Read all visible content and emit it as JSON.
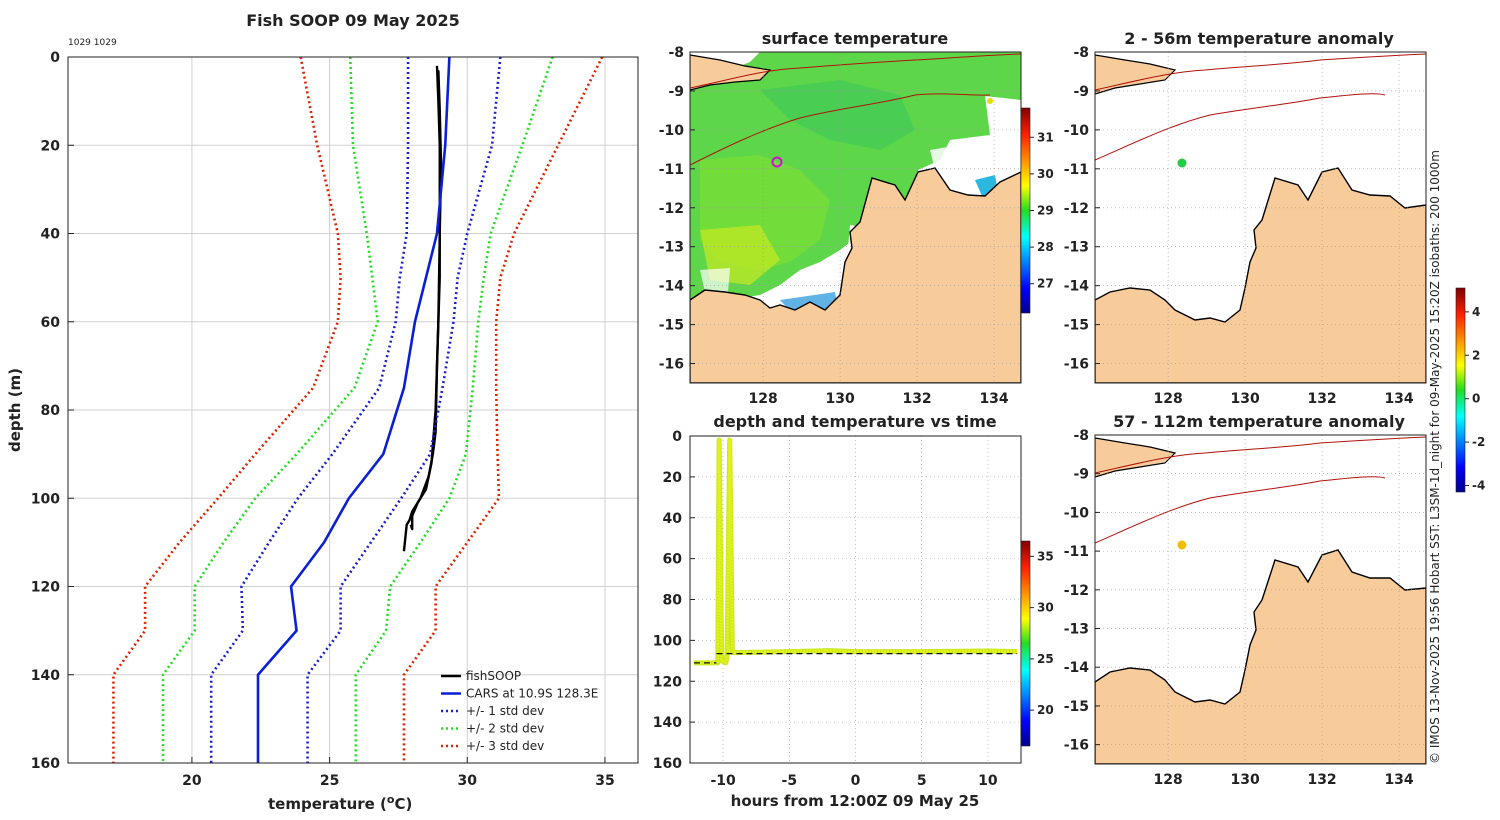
{
  "credit": "© IMOS 13-Nov-2025 19:56 Hobart SST: L3SM-1d_night for 09-May-2025 15:20Z isobaths: 200  1000m",
  "colors": {
    "fish": "#000000",
    "cars": "#0a1fd6",
    "std1": "#1a1fd0",
    "std2": "#22dd22",
    "std3": "#dd2200",
    "land": "#f8cb9a",
    "coast": "#000000",
    "isobath": "#b0120a",
    "grid": "#d0d0d0"
  },
  "chart_data": [
    {
      "id": "profile",
      "type": "line",
      "title": "Fish SOOP 09 May 2025",
      "annotation": "1029 1029",
      "xlabel": "temperature (oC)",
      "ylabel": "depth (m)",
      "xlim": [
        15.5,
        36.2
      ],
      "ylim": [
        0,
        160
      ],
      "xticks": [
        "20",
        "25",
        "30",
        "35"
      ],
      "yticks": [
        "0",
        "20",
        "40",
        "60",
        "80",
        "100",
        "120",
        "140",
        "160"
      ],
      "legend": [
        "fishSOOP",
        "CARS at 10.9S 128.3E",
        "+/- 1 std dev",
        "+/- 2 std dev",
        "+/- 3 std dev"
      ],
      "series": [
        {
          "name": "fishSOOP",
          "color_key": "fish",
          "x": [
            28.9,
            28.95,
            29.0,
            29.0,
            29.0,
            28.9,
            28.85,
            28.75,
            28.6,
            28.3,
            28.0,
            27.9,
            27.8,
            27.75,
            27.7
          ],
          "y": [
            2,
            10,
            20,
            30,
            50,
            70,
            85,
            90,
            95,
            100,
            103,
            105,
            106,
            109,
            112
          ]
        },
        {
          "name": "fishSOOP-2",
          "color_key": "fish",
          "x": [
            28.95,
            29.0,
            29.05,
            29.0,
            28.95,
            28.85,
            28.7,
            28.5,
            28.2,
            28.0,
            28.0,
            27.95
          ],
          "y": [
            3,
            12,
            25,
            40,
            60,
            80,
            92,
            98,
            101,
            104,
            107,
            106
          ]
        },
        {
          "name": "CARS",
          "color_key": "cars",
          "style": "solid",
          "x": [
            29.35,
            29.2,
            28.9,
            28.5,
            28.1,
            27.7,
            26.95,
            25.7,
            24.8,
            23.6,
            23.8,
            22.4,
            22.4
          ],
          "y": [
            0,
            20,
            40,
            50,
            60,
            75,
            90,
            100,
            110,
            120,
            130,
            140,
            160
          ]
        },
        {
          "name": "CARS -1sd",
          "color_key": "std1",
          "style": "dot",
          "x": [
            27.85,
            27.85,
            27.8,
            27.55,
            27.4,
            26.8,
            25.1,
            23.85,
            22.8,
            21.8,
            21.85,
            20.7,
            20.7
          ],
          "y": [
            0,
            20,
            40,
            50,
            60,
            75,
            90,
            100,
            110,
            120,
            130,
            140,
            160
          ]
        },
        {
          "name": "CARS +1sd",
          "color_key": "std1",
          "style": "dot",
          "x": [
            31.2,
            30.9,
            30.0,
            29.65,
            29.5,
            29.1,
            28.65,
            27.6,
            26.5,
            25.4,
            25.4,
            24.2,
            24.2
          ],
          "y": [
            0,
            20,
            40,
            50,
            60,
            75,
            90,
            100,
            110,
            120,
            130,
            140,
            160
          ]
        },
        {
          "name": "CARS -2sd",
          "color_key": "std2",
          "style": "dot",
          "x": [
            25.75,
            25.85,
            26.35,
            26.55,
            26.75,
            25.9,
            23.8,
            22.3,
            21.15,
            20.1,
            20.1,
            18.95,
            18.95
          ],
          "y": [
            0,
            20,
            40,
            50,
            60,
            75,
            90,
            100,
            110,
            120,
            130,
            140,
            160
          ]
        },
        {
          "name": "CARS +2sd",
          "color_key": "std2",
          "style": "dot",
          "x": [
            33.1,
            32.0,
            30.85,
            30.6,
            30.4,
            30.2,
            29.95,
            29.35,
            28.3,
            27.2,
            27.05,
            25.95,
            25.95
          ],
          "y": [
            0,
            20,
            40,
            50,
            60,
            75,
            90,
            100,
            110,
            120,
            130,
            140,
            160
          ]
        },
        {
          "name": "CARS -3sd",
          "color_key": "std3",
          "style": "dot",
          "x": [
            23.95,
            24.55,
            25.3,
            25.4,
            25.3,
            24.4,
            22.3,
            20.95,
            19.55,
            18.3,
            18.3,
            17.15,
            17.15
          ],
          "y": [
            0,
            20,
            40,
            50,
            60,
            75,
            90,
            100,
            110,
            120,
            130,
            140,
            160
          ]
        },
        {
          "name": "CARS +3sd",
          "color_key": "std3",
          "style": "dot",
          "x": [
            34.9,
            33.3,
            31.7,
            31.2,
            31.05,
            31.05,
            31.1,
            31.15,
            30.0,
            28.85,
            28.85,
            27.7,
            27.7
          ],
          "y": [
            0,
            20,
            40,
            50,
            60,
            75,
            90,
            100,
            110,
            120,
            130,
            140,
            160
          ]
        }
      ]
    },
    {
      "id": "sst_map",
      "type": "heatmap",
      "title": "surface temperature",
      "xlim": [
        126.1,
        134.7
      ],
      "ylim": [
        -16.5,
        -8
      ],
      "xticks": [
        "128",
        "130",
        "132",
        "134"
      ],
      "yticks": [
        "-8",
        "-9",
        "-10",
        "-11",
        "-12",
        "-13",
        "-14",
        "-15",
        "-16"
      ],
      "colorbar": {
        "range": [
          26.2,
          31.8
        ],
        "ticks": [
          "27",
          "28",
          "29",
          "30",
          "31"
        ]
      },
      "marker": {
        "lon": 128.3,
        "lat": -10.9,
        "label": "ring"
      }
    },
    {
      "id": "anom_shallow",
      "type": "heatmap",
      "title": "2 - 56m temperature anomaly",
      "xlim": [
        126.1,
        134.7
      ],
      "ylim": [
        -16.5,
        -8
      ],
      "xticks": [
        "128",
        "130",
        "132",
        "134"
      ],
      "yticks": [
        "-8",
        "-9",
        "-10",
        "-11",
        "-12",
        "-13",
        "-14",
        "-15",
        "-16"
      ],
      "point": {
        "lon": 128.3,
        "lat": -10.9,
        "value": 0.3
      }
    },
    {
      "id": "anom_deep",
      "type": "heatmap",
      "title": "57 - 112m temperature anomaly",
      "xlim": [
        126.1,
        134.7
      ],
      "ylim": [
        -16.5,
        -8
      ],
      "xticks": [
        "128",
        "130",
        "132",
        "134"
      ],
      "yticks": [
        "-8",
        "-9",
        "-10",
        "-11",
        "-12",
        "-13",
        "-14",
        "-15",
        "-16"
      ],
      "point": {
        "lon": 128.3,
        "lat": -10.9,
        "value": 2.0
      },
      "colorbar": {
        "range": [
          -4.3,
          5.1
        ],
        "ticks": [
          "4",
          "2",
          "0",
          "-2",
          "-4"
        ]
      }
    },
    {
      "id": "depth_time",
      "type": "scatter",
      "title": "depth and temperature vs time",
      "xlabel": "hours from 12:00Z 09 May 25",
      "xlim": [
        -12.5,
        12.5
      ],
      "ylim": [
        0,
        160
      ],
      "xticks": [
        "-10",
        "-5",
        "0",
        "5",
        "10"
      ],
      "yticks": [
        "0",
        "20",
        "40",
        "60",
        "80",
        "100",
        "120",
        "140",
        "160"
      ],
      "colorbar": {
        "range": [
          16.5,
          36.5
        ],
        "ticks": [
          "35",
          "30",
          "25",
          "20"
        ]
      },
      "track": {
        "x": [
          -12.2,
          -10.6,
          -10.4,
          -10.3,
          -10.1,
          -9.8,
          -9.7,
          -9.5,
          -9.3,
          -5,
          -2,
          0,
          5,
          10,
          12.2
        ],
        "y": [
          111,
          111,
          111,
          2,
          110,
          111,
          108,
          2,
          106,
          105.5,
          105,
          105.5,
          105.5,
          105.2,
          105.5
        ],
        "temp": 27.5
      },
      "reference_depth": 106
    }
  ]
}
